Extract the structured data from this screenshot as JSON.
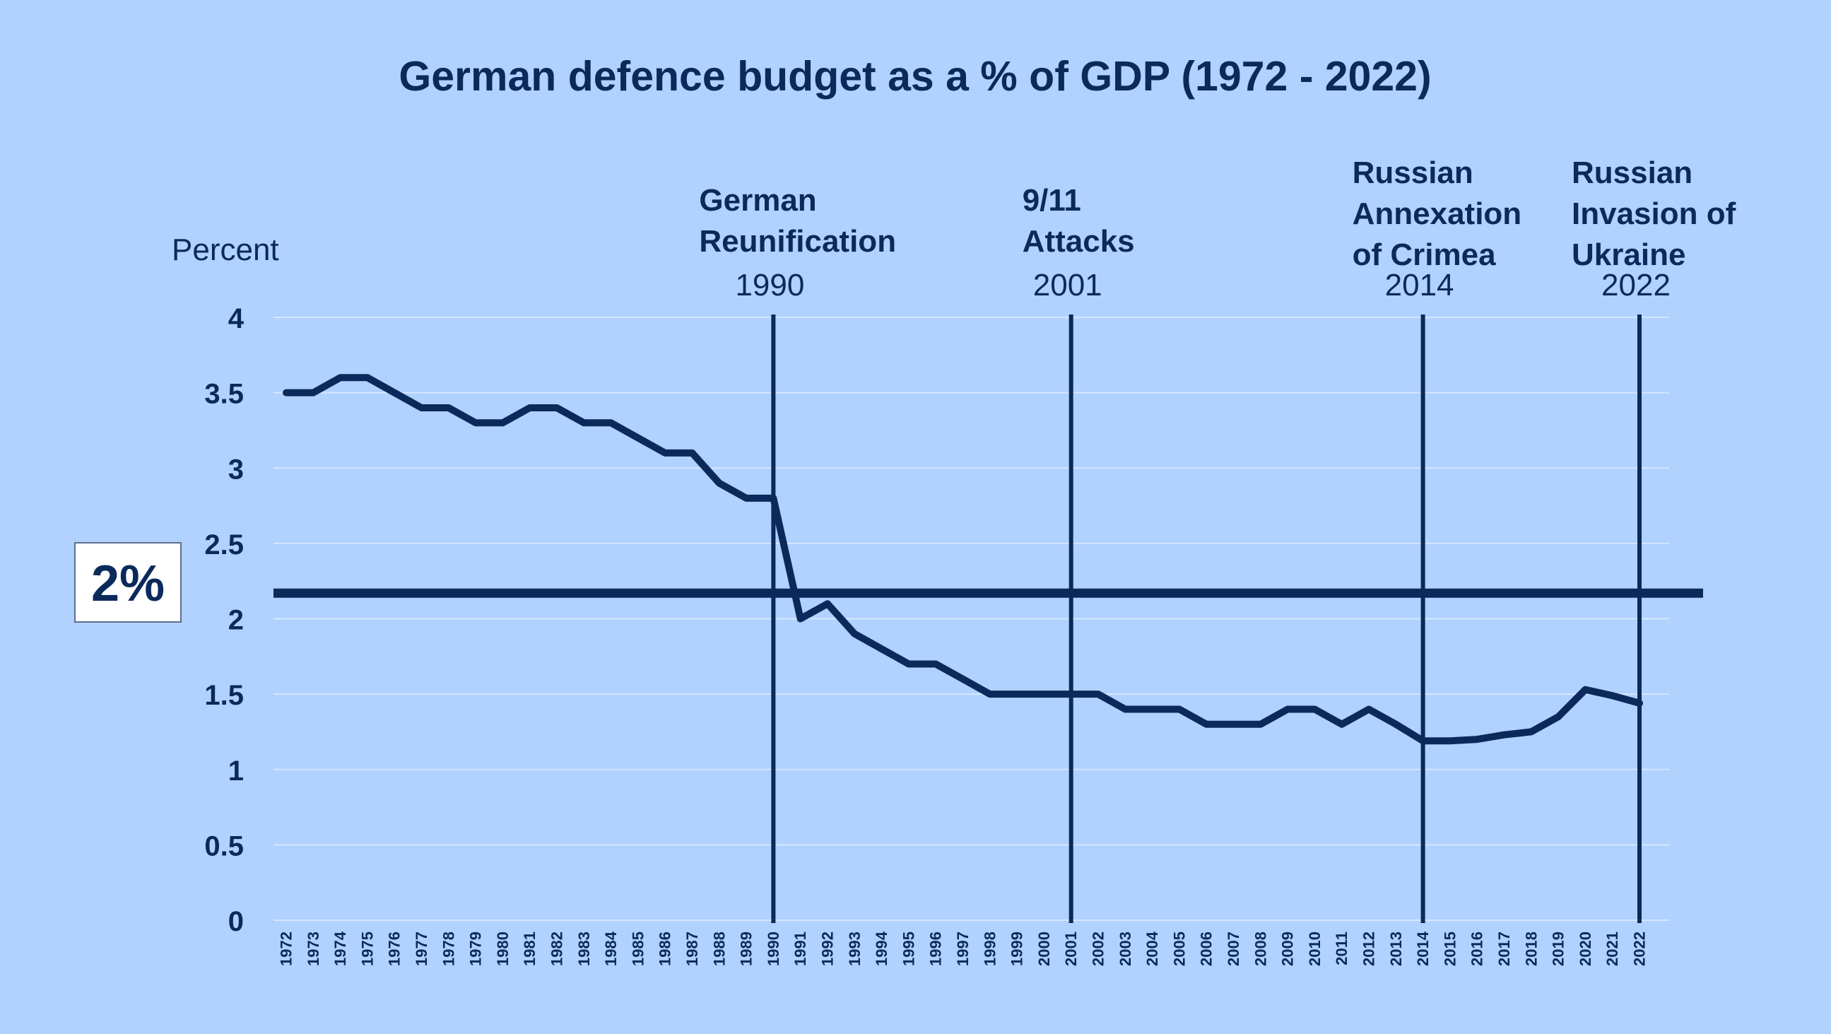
{
  "colors": {
    "background": "#b1d1fe",
    "line": "#0b2a5b",
    "text": "#0b2a5b",
    "grid": "#d6e6ff",
    "threshold_box_bg": "#ffffff"
  },
  "chart_data": {
    "type": "line",
    "title": "German defence budget as a % of GDP (1972 - 2022)",
    "ylabel": "Percent",
    "xlabel": "",
    "ylim": [
      0,
      4
    ],
    "yticks": [
      "0",
      "0.5",
      "1",
      "1.5",
      "2",
      "2.5",
      "3",
      "3.5",
      "4"
    ],
    "grid": "horizontal",
    "x": [
      "1972",
      "1973",
      "1974",
      "1975",
      "1976",
      "1977",
      "1978",
      "1979",
      "1980",
      "1981",
      "1982",
      "1983",
      "1984",
      "1985",
      "1986",
      "1987",
      "1988",
      "1989",
      "1990",
      "1991",
      "1992",
      "1993",
      "1994",
      "1995",
      "1996",
      "1997",
      "1998",
      "1999",
      "2000",
      "2001",
      "2002",
      "2003",
      "2004",
      "2005",
      "2006",
      "2007",
      "2008",
      "2009",
      "2010",
      "2011",
      "2012",
      "2013",
      "2014",
      "2015",
      "2016",
      "2017",
      "2018",
      "2019",
      "2020",
      "2021",
      "2022"
    ],
    "values": [
      3.5,
      3.5,
      3.6,
      3.6,
      3.5,
      3.4,
      3.4,
      3.3,
      3.3,
      3.4,
      3.4,
      3.3,
      3.3,
      3.2,
      3.1,
      3.1,
      2.9,
      2.8,
      2.8,
      2.0,
      2.1,
      1.9,
      1.8,
      1.7,
      1.7,
      1.6,
      1.5,
      1.5,
      1.5,
      1.5,
      1.5,
      1.4,
      1.4,
      1.4,
      1.3,
      1.3,
      1.3,
      1.4,
      1.4,
      1.3,
      1.4,
      1.3,
      1.19,
      1.19,
      1.2,
      1.23,
      1.25,
      1.35,
      1.53,
      1.49,
      1.44
    ],
    "threshold": {
      "value": 2.17,
      "label": "2%"
    },
    "events": [
      {
        "year": "1990",
        "title_lines": [
          "German",
          "Reunification"
        ],
        "year_label": "1990"
      },
      {
        "year": "2001",
        "title_lines": [
          "9/11",
          "Attacks"
        ],
        "year_label": "2001"
      },
      {
        "year": "2014",
        "title_lines": [
          "Russian",
          "Annexation",
          "of Crimea"
        ],
        "year_label": "2014"
      },
      {
        "year": "2022",
        "title_lines": [
          "Russian",
          "Invasion of",
          "Ukraine"
        ],
        "year_label": "2022"
      }
    ]
  }
}
